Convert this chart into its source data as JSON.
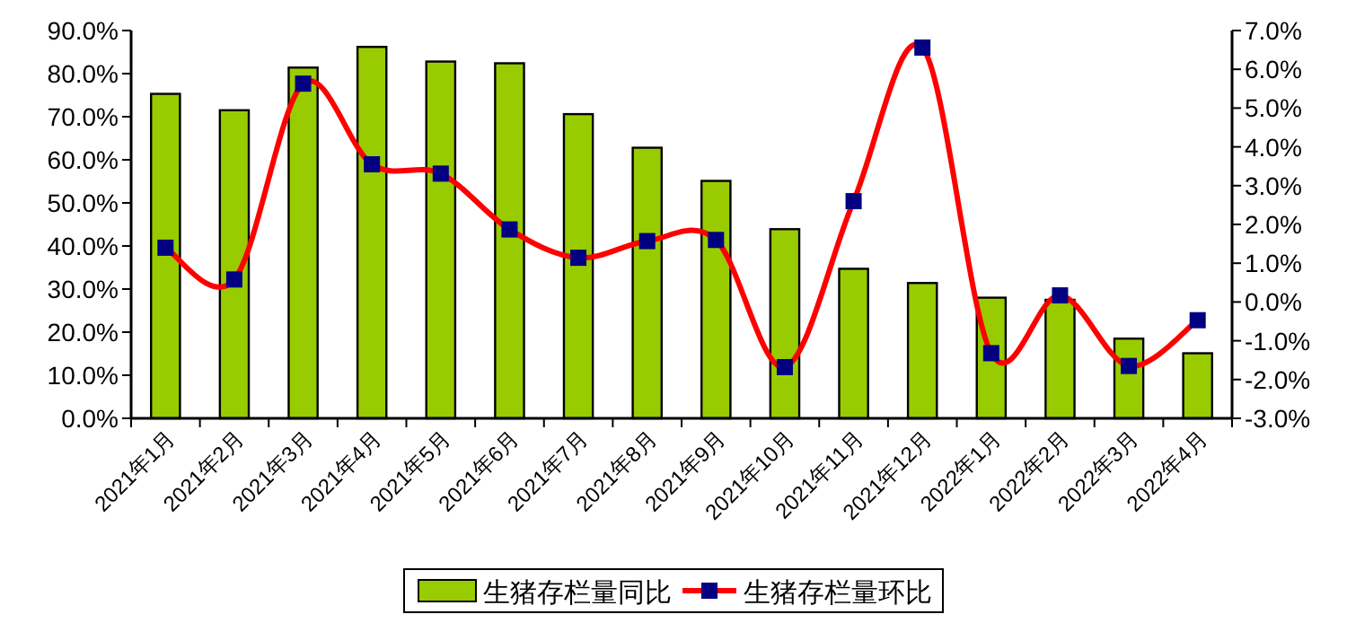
{
  "chart_data": {
    "type": "bar",
    "categories": [
      "2021年1月",
      "2021年2月",
      "2021年3月",
      "2021年4月",
      "2021年5月",
      "2021年6月",
      "2021年7月",
      "2021年8月",
      "2021年9月",
      "2021年10月",
      "2021年11月",
      "2021年12月",
      "2022年1月",
      "2022年2月",
      "2022年3月",
      "2022年4月"
    ],
    "series": [
      {
        "name": "生猪存栏量同比",
        "color": "#99cc00",
        "values": [
          75.3,
          71.5,
          81.4,
          86.2,
          82.8,
          82.4,
          70.6,
          62.8,
          55.1,
          43.9,
          34.7,
          31.4,
          28.0,
          27.5,
          18.5,
          15.1
        ]
      },
      {
        "name": "生猪存栏量环比",
        "type": "line",
        "axis": "y2",
        "color": "#ff0000",
        "marker": "square",
        "values": [
          1.4,
          0.58,
          5.63,
          3.55,
          3.31,
          1.87,
          1.14,
          1.57,
          1.6,
          -1.68,
          2.6,
          6.56,
          -1.32,
          0.17,
          -1.65,
          -0.47
        ]
      }
    ],
    "ylim": [
      0,
      90
    ],
    "yticks": [
      {
        "value": 0,
        "label": "0.0%"
      },
      {
        "value": 10,
        "label": "10.0%"
      },
      {
        "value": 20,
        "label": "20.0%"
      },
      {
        "value": 30,
        "label": "30.0%"
      },
      {
        "value": 40,
        "label": "40.0%"
      },
      {
        "value": 50,
        "label": "50.0%"
      },
      {
        "value": 60,
        "label": "60.0%"
      },
      {
        "value": 70,
        "label": "70.0%"
      },
      {
        "value": 80,
        "label": "80.0%"
      },
      {
        "value": 90,
        "label": "90.0%"
      }
    ],
    "y2lim": [
      -3,
      7
    ],
    "y2ticks": [
      {
        "value": -3,
        "label": "-3.0%"
      },
      {
        "value": -2,
        "label": "-2.0%"
      },
      {
        "value": -1,
        "label": "-1.0%"
      },
      {
        "value": 0,
        "label": "0.0%"
      },
      {
        "value": 1,
        "label": "1.0%"
      },
      {
        "value": 2,
        "label": "2.0%"
      },
      {
        "value": 3,
        "label": "3.0%"
      },
      {
        "value": 4,
        "label": "4.0%"
      },
      {
        "value": 5,
        "label": "5.0%"
      },
      {
        "value": 6,
        "label": "6.0%"
      },
      {
        "value": 7,
        "label": "7.0%"
      }
    ],
    "legend": "bottom",
    "grid": false
  }
}
